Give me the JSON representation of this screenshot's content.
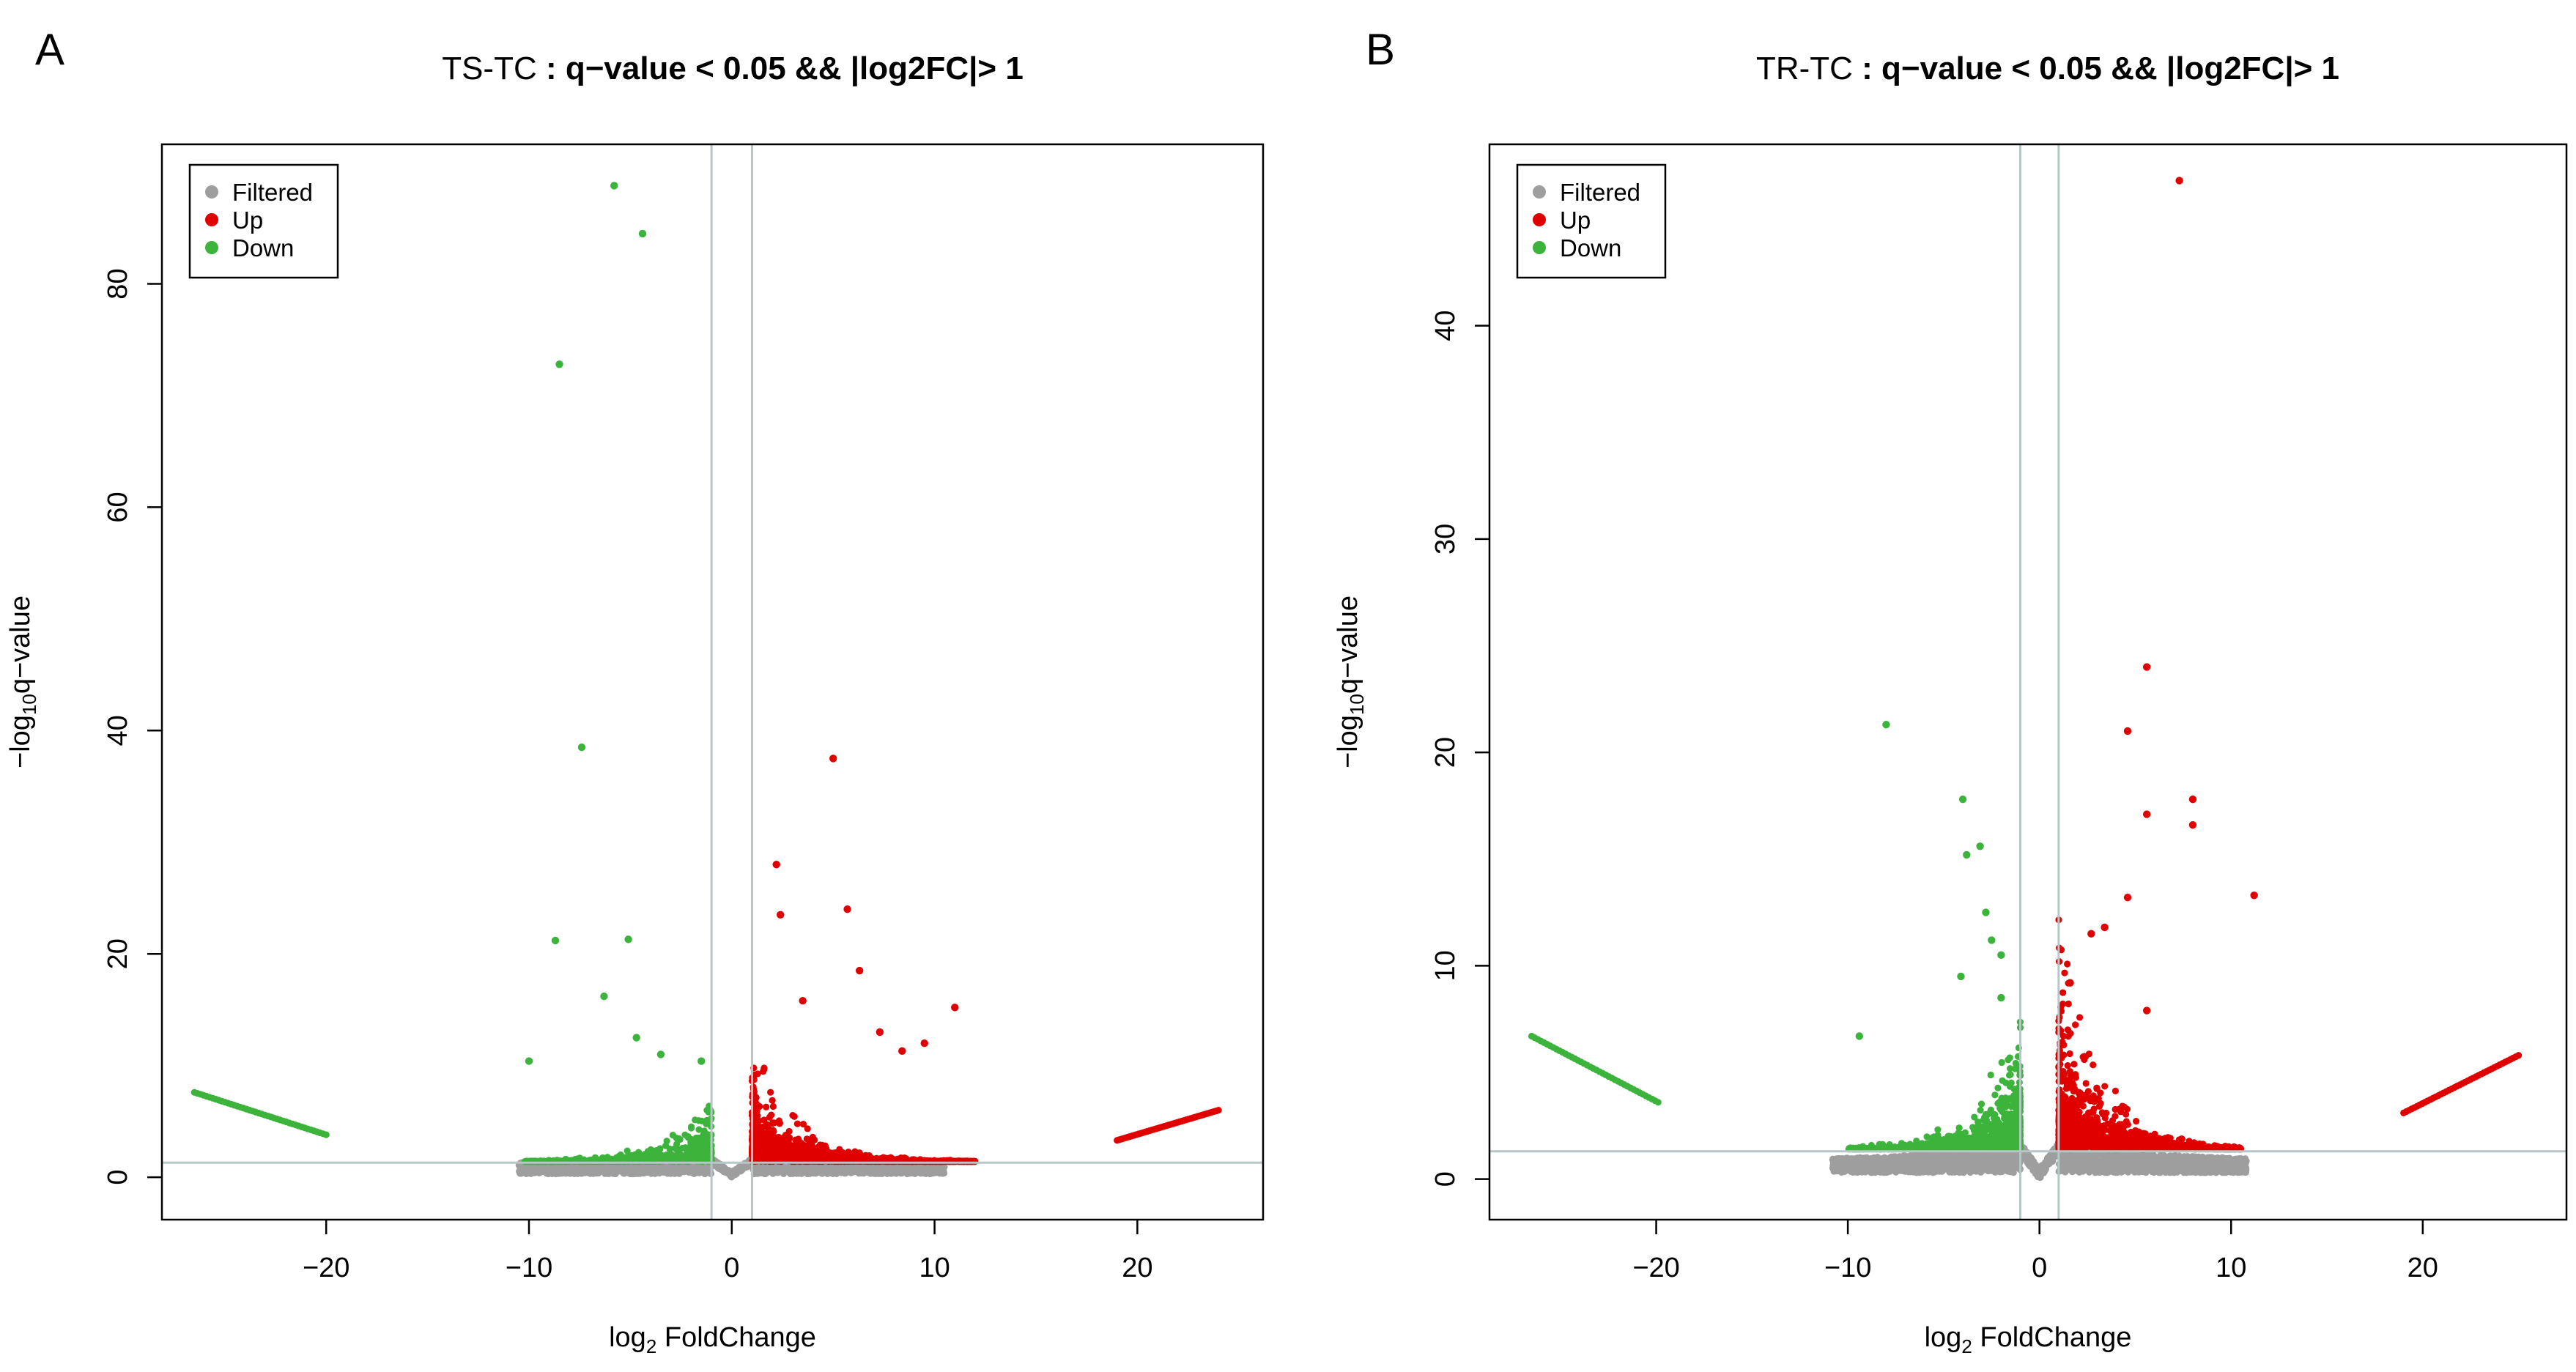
{
  "colors": {
    "filtered": "#9e9e9e",
    "up": "#e00000",
    "down": "#3cb43c",
    "threshold_line": "#b8c6c8",
    "axis": "#000000"
  },
  "chart_data": [
    {
      "panel_letter": "A",
      "type": "scatter",
      "title_prefix": "TS-TC",
      "title_main": " : q−value < 0.05 && |log2FC|> 1",
      "xlabel_pre": "log",
      "xlabel_sub": "2",
      "xlabel_post": " FoldChange",
      "ylabel_pre": "−log",
      "ylabel_sub": "10",
      "ylabel_post": "q−value",
      "xlim": [
        -28.1,
        26.2
      ],
      "ylim": [
        -3.8,
        92.5
      ],
      "xticks": [
        -20,
        -10,
        0,
        10,
        20
      ],
      "xtick_labels": [
        "−20",
        "−10",
        "0",
        "10",
        "20"
      ],
      "yticks": [
        0,
        20,
        40,
        60,
        80
      ],
      "ytick_labels": [
        "0",
        "20",
        "40",
        "60",
        "80"
      ],
      "vlines": [
        -1,
        1
      ],
      "hline": 1.3,
      "legend": {
        "position": "top-left",
        "entries": [
          "Filtered",
          "Up",
          "Down"
        ]
      },
      "series": [
        {
          "name": "Filtered",
          "cloud": {
            "x_range": [
              -10.5,
              10.5
            ],
            "y_max": 2.4,
            "count": 2600
          }
        },
        {
          "name": "Up",
          "trend": {
            "x_start": 19,
            "x_end": 24,
            "y_start": 3.3,
            "y_end": 6.0,
            "count": 48
          },
          "cloud": {
            "x_range": [
              1.0,
              12.0
            ],
            "y_min": 1.4,
            "count": 1500
          },
          "outliers": [
            [
              5.0,
              37.5
            ],
            [
              2.2,
              28.0
            ],
            [
              5.7,
              24.0
            ],
            [
              2.4,
              23.5
            ],
            [
              6.3,
              18.5
            ],
            [
              11.0,
              15.2
            ],
            [
              9.5,
              12.0
            ],
            [
              7.3,
              13.0
            ],
            [
              8.4,
              11.3
            ],
            [
              3.5,
              15.8
            ]
          ]
        },
        {
          "name": "Down",
          "trend": {
            "x_start": -26.5,
            "x_end": -20.0,
            "y_start": 7.6,
            "y_end": 3.8,
            "count": 44
          },
          "cloud": {
            "x_range": [
              -10.3,
              -1.0
            ],
            "y_min": 1.4,
            "count": 850
          },
          "outliers": [
            [
              -5.8,
              88.8
            ],
            [
              -4.4,
              84.5
            ],
            [
              -8.5,
              72.8
            ],
            [
              -7.4,
              38.5
            ],
            [
              -8.7,
              21.2
            ],
            [
              -5.1,
              21.3
            ],
            [
              -6.3,
              16.2
            ],
            [
              -4.7,
              12.5
            ],
            [
              -10.0,
              10.4
            ],
            [
              -1.5,
              10.4
            ],
            [
              -3.5,
              11.0
            ]
          ]
        }
      ]
    },
    {
      "panel_letter": "B",
      "type": "scatter",
      "title_prefix": "TR-TC",
      "title_main": " : q−value < 0.05 && |log2FC|> 1",
      "xlabel_pre": "log",
      "xlabel_sub": "2",
      "xlabel_post": " FoldChange",
      "ylabel_pre": "−log",
      "ylabel_sub": "10",
      "ylabel_post": "q−value",
      "xlim": [
        -28.7,
        27.5
      ],
      "ylim": [
        -1.9,
        48.5
      ],
      "xticks": [
        -20,
        -10,
        0,
        10,
        20
      ],
      "xtick_labels": [
        "−20",
        "−10",
        "0",
        "10",
        "20"
      ],
      "yticks": [
        0,
        10,
        20,
        30,
        40
      ],
      "yticks_labels_note": "",
      "ytick_labels": [
        "0",
        "10",
        "20",
        "30",
        "40"
      ],
      "vlines": [
        -1,
        1
      ],
      "hline": 1.3,
      "legend": {
        "position": "top-left",
        "entries": [
          "Filtered",
          "Up",
          "Down"
        ]
      },
      "series": [
        {
          "name": "Filtered",
          "cloud": {
            "x_range": [
              -10.8,
              10.8
            ],
            "y_max": 1.6,
            "count": 2600
          }
        },
        {
          "name": "Up",
          "trend": {
            "x_start": 19,
            "x_end": 25,
            "y_start": 3.1,
            "y_end": 5.8,
            "count": 44
          },
          "cloud": {
            "x_range": [
              1.0,
              10.5
            ],
            "y_min": 1.4,
            "count": 1300
          },
          "outliers": [
            [
              7.3,
              46.8
            ],
            [
              5.6,
              24.0
            ],
            [
              4.6,
              21.0
            ],
            [
              8.0,
              17.8
            ],
            [
              8.0,
              16.6
            ],
            [
              5.6,
              17.1
            ],
            [
              11.2,
              13.3
            ],
            [
              4.6,
              13.2
            ],
            [
              3.4,
              11.8
            ],
            [
              2.7,
              11.5
            ],
            [
              5.6,
              7.9
            ],
            [
              1.6,
              9.2
            ]
          ]
        },
        {
          "name": "Down",
          "trend": {
            "x_start": -26.5,
            "x_end": -19.9,
            "y_start": 6.7,
            "y_end": 3.6,
            "count": 42
          },
          "cloud": {
            "x_range": [
              -10.0,
              -1.0
            ],
            "y_min": 1.4,
            "count": 1100
          },
          "outliers": [
            [
              -8.0,
              21.3
            ],
            [
              -4.0,
              17.8
            ],
            [
              -3.1,
              15.6
            ],
            [
              -3.8,
              15.2
            ],
            [
              -2.8,
              12.5
            ],
            [
              -2.5,
              11.2
            ],
            [
              -2.0,
              10.5
            ],
            [
              -4.1,
              9.5
            ],
            [
              -2.0,
              8.5
            ],
            [
              -9.4,
              6.7
            ]
          ]
        }
      ]
    }
  ]
}
